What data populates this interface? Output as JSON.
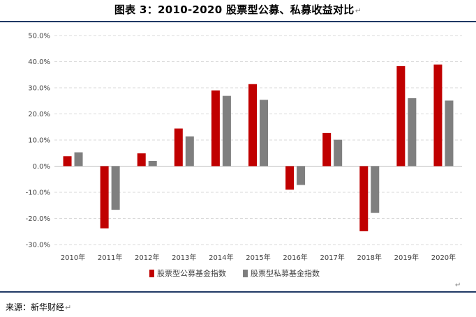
{
  "title": "图表 3：2010-2020 股票型公募、私募收益对比",
  "title_mark": "↵",
  "source": "来源：新华财经",
  "source_mark": "↵",
  "corner_mark": "↵",
  "colors": {
    "public": "#c00000",
    "private": "#7f7f7f",
    "grid": "#d9d9d9",
    "axis": "#bfbfbf"
  },
  "chart_data": {
    "type": "bar",
    "categories": [
      "2010年",
      "2011年",
      "2012年",
      "2013年",
      "2014年",
      "2015年",
      "2016年",
      "2017年",
      "2018年",
      "2019年",
      "2020年"
    ],
    "series": [
      {
        "name": "股票型公募基金指数",
        "values": [
          3.8,
          -23.8,
          4.9,
          14.4,
          29.0,
          31.4,
          -9.0,
          12.7,
          -24.9,
          38.3,
          38.9
        ]
      },
      {
        "name": "股票型私募基金指数",
        "values": [
          5.3,
          -16.7,
          2.0,
          11.4,
          26.9,
          25.4,
          -7.2,
          10.1,
          -17.9,
          26.0,
          25.1
        ]
      }
    ],
    "ylim": [
      -30,
      50
    ],
    "yticks": [
      "-30.0%",
      "-20.0%",
      "-10.0%",
      "0.0%",
      "10.0%",
      "20.0%",
      "30.0%",
      "40.0%",
      "50.0%"
    ],
    "ytick_values": [
      -30,
      -20,
      -10,
      0,
      10,
      20,
      30,
      40,
      50
    ],
    "grid": true,
    "legend_position": "bottom"
  }
}
